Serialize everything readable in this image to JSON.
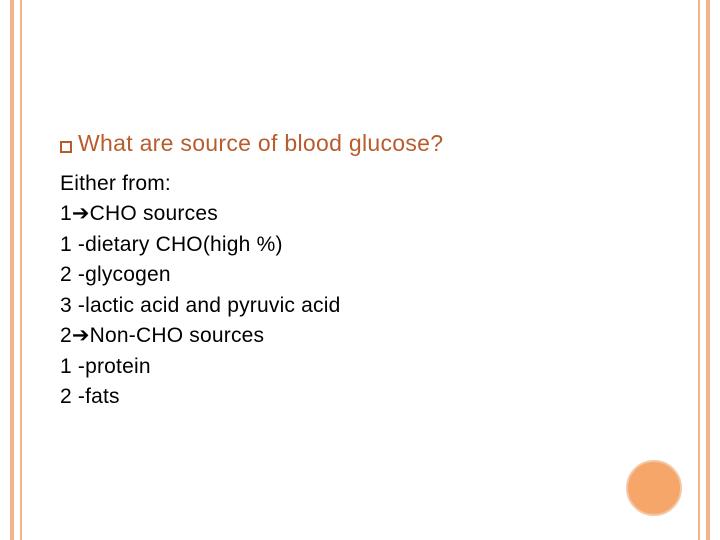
{
  "slide": {
    "heading": "What are source of blood glucose?",
    "lines": [
      "Either from:",
      "1➔CHO sources",
      "1 -dietary CHO(high %)",
      "2 -glycogen",
      "3 -lactic acid and pyruvic acid",
      "2➔Non-CHO sources",
      "1 -protein",
      "2 -fats"
    ],
    "colors": {
      "accent": "#b85c2e",
      "border": "#f4b48a",
      "circle_fill": "#f7a66a",
      "circle_border": "#f0c9a8",
      "background": "#ffffff",
      "body_text": "#000000"
    },
    "fontsize": {
      "heading": 23,
      "body": 21
    }
  }
}
